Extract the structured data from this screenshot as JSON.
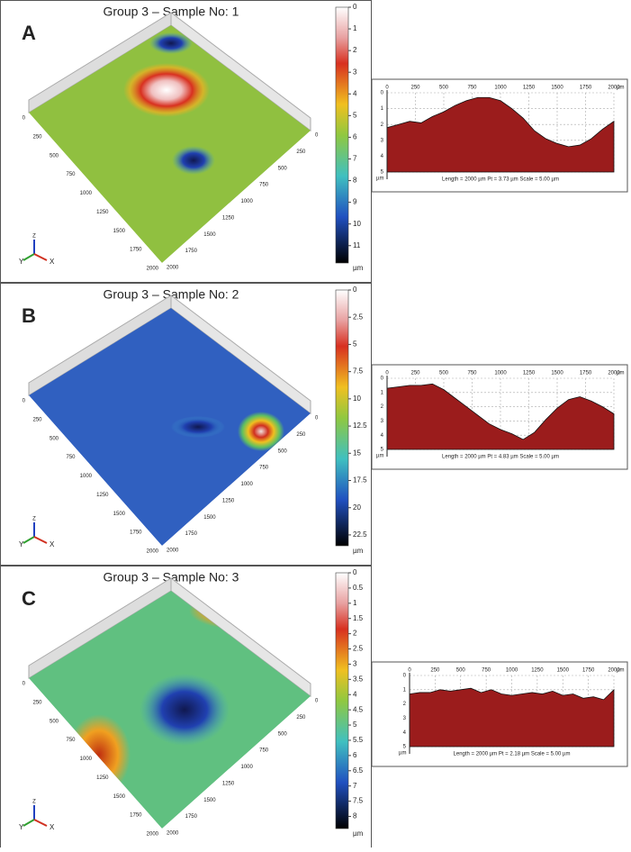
{
  "surface_ticks": [
    "0",
    "250",
    "500",
    "750",
    "1000",
    "1250",
    "1500",
    "1750",
    "2000"
  ],
  "axis_labels": {
    "z": "Z",
    "y": "Y",
    "x": "X",
    "unit": "µm"
  },
  "panels": [
    {
      "letter": "A",
      "title": "Group 3 – Sample No: 1",
      "colorbar": {
        "clim": [
          0,
          11.8
        ],
        "ticks": [
          0,
          1,
          2,
          3,
          4,
          5,
          6,
          7,
          8,
          9,
          10,
          11
        ],
        "unit": "µm"
      },
      "profile": {
        "xlim": [
          0,
          2000
        ],
        "xticks": [
          0,
          250,
          500,
          750,
          1000,
          1250,
          1500,
          1750,
          2000
        ],
        "x_unit": "µm",
        "ylim": [
          0,
          5
        ],
        "yticks": [
          0,
          1,
          2,
          3,
          4,
          5
        ],
        "y_unit": "µm",
        "x": [
          0,
          100,
          200,
          300,
          400,
          500,
          600,
          700,
          800,
          900,
          1000,
          1100,
          1200,
          1300,
          1400,
          1500,
          1600,
          1700,
          1800,
          1900,
          2000
        ],
        "values": [
          2.2,
          2.0,
          1.8,
          1.9,
          1.5,
          1.2,
          0.8,
          0.5,
          0.3,
          0.3,
          0.5,
          1.0,
          1.6,
          2.4,
          2.9,
          3.2,
          3.4,
          3.3,
          2.9,
          2.3,
          1.8
        ],
        "caption": "Length = 2000 µm  Pt = 3.73 µm  Scale = 5.00 µm"
      }
    },
    {
      "letter": "B",
      "title": "Group 3 – Sample No: 2",
      "colorbar": {
        "clim": [
          0,
          23.5
        ],
        "ticks": [
          0,
          2.5,
          5,
          7.5,
          10,
          12.5,
          15,
          17.5,
          20,
          22.5
        ],
        "unit": "µm"
      },
      "profile": {
        "xlim": [
          0,
          2000
        ],
        "xticks": [
          0,
          250,
          500,
          750,
          1000,
          1250,
          1500,
          1750,
          2000
        ],
        "x_unit": "µm",
        "ylim": [
          0,
          5
        ],
        "yticks": [
          0,
          1,
          2,
          3,
          4,
          5
        ],
        "y_unit": "µm",
        "x": [
          0,
          100,
          200,
          300,
          400,
          500,
          600,
          700,
          800,
          900,
          1000,
          1100,
          1200,
          1300,
          1400,
          1500,
          1600,
          1700,
          1800,
          1900,
          2000
        ],
        "values": [
          0.7,
          0.6,
          0.5,
          0.5,
          0.4,
          0.8,
          1.4,
          2.0,
          2.6,
          3.2,
          3.6,
          3.9,
          4.3,
          3.8,
          2.9,
          2.1,
          1.5,
          1.3,
          1.6,
          2.0,
          2.5
        ],
        "caption": "Length = 2000 µm  Pt = 4.83 µm  Scale = 5.00 µm"
      }
    },
    {
      "letter": "C",
      "title": "Group 3 – Sample No: 3",
      "colorbar": {
        "clim": [
          0,
          8.4
        ],
        "ticks": [
          0,
          0.5,
          1,
          1.5,
          2,
          2.5,
          3,
          3.5,
          4,
          4.5,
          5,
          5.5,
          6,
          6.5,
          7,
          7.5,
          8
        ],
        "unit": "µm"
      },
      "profile": {
        "xlim": [
          0,
          2000
        ],
        "xticks": [
          0,
          250,
          500,
          750,
          1000,
          1250,
          1500,
          1750,
          2000
        ],
        "x_unit": "µm",
        "ylim": [
          0,
          5
        ],
        "yticks": [
          0,
          1,
          2,
          3,
          4,
          5
        ],
        "y_unit": "µm",
        "x": [
          0,
          100,
          200,
          300,
          400,
          500,
          600,
          700,
          800,
          900,
          1000,
          1100,
          1200,
          1300,
          1400,
          1500,
          1600,
          1700,
          1800,
          1900,
          2000
        ],
        "values": [
          1.3,
          1.2,
          1.2,
          1.0,
          1.1,
          1.0,
          0.9,
          1.2,
          1.0,
          1.3,
          1.4,
          1.3,
          1.2,
          1.3,
          1.1,
          1.4,
          1.3,
          1.6,
          1.5,
          1.7,
          1.0
        ],
        "caption": "Length = 2000 µm  Pt = 2.18 µm  Scale = 5.00 µm"
      }
    }
  ]
}
